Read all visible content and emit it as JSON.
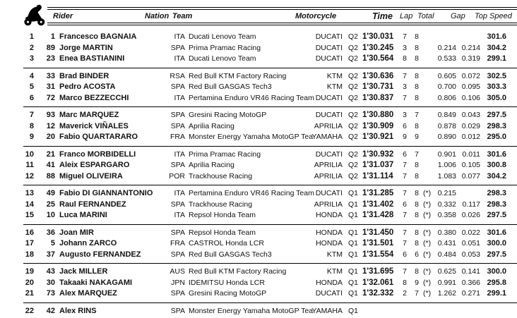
{
  "header": {
    "rider": "Rider",
    "nation": "Nation",
    "team": "Team",
    "motorcycle": "Motorcycle",
    "time": "Time",
    "lap": "Lap",
    "total": "Total",
    "gap": "Gap",
    "top_speed": "Top Speed"
  },
  "icons": {
    "header_icon": "motorcycle-rider"
  },
  "colors": {
    "text": "#111111",
    "rule": "#000000",
    "background": "#ffffff"
  },
  "groups": [
    {
      "rows": [
        {
          "pos": "1",
          "num": "1",
          "name": "Francesco BAGNAIA",
          "nation": "ITA",
          "team": "Ducati Lenovo Team",
          "bike": "DUCATI",
          "session": "Q2",
          "time": "1'30.031",
          "lap": "7",
          "total": "8",
          "star": "",
          "gap1": "",
          "gap2": "",
          "speed": "301.6"
        },
        {
          "pos": "2",
          "num": "89",
          "name": "Jorge MARTIN",
          "nation": "SPA",
          "team": "Prima Pramac Racing",
          "bike": "DUCATI",
          "session": "Q2",
          "time": "1'30.245",
          "lap": "3",
          "total": "8",
          "star": "",
          "gap1": "0.214",
          "gap2": "0.214",
          "speed": "304.2"
        },
        {
          "pos": "3",
          "num": "23",
          "name": "Enea BASTIANINI",
          "nation": "ITA",
          "team": "Ducati Lenovo Team",
          "bike": "DUCATI",
          "session": "Q2",
          "time": "1'30.564",
          "lap": "8",
          "total": "8",
          "star": "",
          "gap1": "0.533",
          "gap2": "0.319",
          "speed": "299.1"
        }
      ]
    },
    {
      "rows": [
        {
          "pos": "4",
          "num": "33",
          "name": "Brad BINDER",
          "nation": "RSA",
          "team": "Red Bull KTM Factory Racing",
          "bike": "KTM",
          "session": "Q2",
          "time": "1'30.636",
          "lap": "7",
          "total": "8",
          "star": "",
          "gap1": "0.605",
          "gap2": "0.072",
          "speed": "302.5"
        },
        {
          "pos": "5",
          "num": "31",
          "name": "Pedro ACOSTA",
          "nation": "SPA",
          "team": "Red Bull GASGAS Tech3",
          "bike": "KTM",
          "session": "Q2",
          "time": "1'30.731",
          "lap": "3",
          "total": "8",
          "star": "",
          "gap1": "0.700",
          "gap2": "0.095",
          "speed": "303.3"
        },
        {
          "pos": "6",
          "num": "72",
          "name": "Marco BEZZECCHI",
          "nation": "ITA",
          "team": "Pertamina Enduro VR46 Racing Team",
          "bike": "DUCATI",
          "session": "Q2",
          "time": "1'30.837",
          "lap": "7",
          "total": "8",
          "star": "",
          "gap1": "0.806",
          "gap2": "0.106",
          "speed": "305.0"
        }
      ]
    },
    {
      "rows": [
        {
          "pos": "7",
          "num": "93",
          "name": "Marc MARQUEZ",
          "nation": "SPA",
          "team": "Gresini Racing MotoGP",
          "bike": "DUCATI",
          "session": "Q2",
          "time": "1'30.880",
          "lap": "3",
          "total": "7",
          "star": "",
          "gap1": "0.849",
          "gap2": "0.043",
          "speed": "297.5"
        },
        {
          "pos": "8",
          "num": "12",
          "name": "Maverick VIÑALES",
          "nation": "SPA",
          "team": "Aprilia Racing",
          "bike": "APRILIA",
          "session": "Q2",
          "time": "1'30.909",
          "lap": "6",
          "total": "8",
          "star": "",
          "gap1": "0.878",
          "gap2": "0.029",
          "speed": "298.3"
        },
        {
          "pos": "9",
          "num": "20",
          "name": "Fabio QUARTARARO",
          "nation": "FRA",
          "team": "Monster Energy Yamaha MotoGP Tea",
          "bike": "YAMAHA",
          "session": "Q2",
          "time": "1'30.921",
          "lap": "9",
          "total": "9",
          "star": "",
          "gap1": "0.890",
          "gap2": "0.012",
          "speed": "295.0"
        }
      ]
    },
    {
      "rows": [
        {
          "pos": "10",
          "num": "21",
          "name": "Franco MORBIDELLI",
          "nation": "ITA",
          "team": "Prima Pramac Racing",
          "bike": "DUCATI",
          "session": "Q2",
          "time": "1'30.932",
          "lap": "6",
          "total": "7",
          "star": "",
          "gap1": "0.901",
          "gap2": "0.011",
          "speed": "301.6"
        },
        {
          "pos": "11",
          "num": "41",
          "name": "Aleix ESPARGARO",
          "nation": "SPA",
          "team": "Aprilia Racing",
          "bike": "APRILIA",
          "session": "Q2",
          "time": "1'31.037",
          "lap": "7",
          "total": "8",
          "star": "",
          "gap1": "1.006",
          "gap2": "0.105",
          "speed": "300.8"
        },
        {
          "pos": "12",
          "num": "88",
          "name": "Miguel OLIVEIRA",
          "nation": "POR",
          "team": "Trackhouse Racing",
          "bike": "APRILIA",
          "session": "Q2",
          "time": "1'31.114",
          "lap": "7",
          "total": "8",
          "star": "",
          "gap1": "1.083",
          "gap2": "0.077",
          "speed": "304.2"
        }
      ]
    },
    {
      "rows": [
        {
          "pos": "13",
          "num": "49",
          "name": "Fabio DI GIANNANTONIO",
          "nation": "ITA",
          "team": "Pertamina Enduro VR46 Racing Team",
          "bike": "DUCATI",
          "session": "Q1",
          "time": "1'31.285",
          "lap": "7",
          "total": "8",
          "star": "(*)",
          "gap1": "0.215",
          "gap2": "",
          "speed": "298.3"
        },
        {
          "pos": "14",
          "num": "25",
          "name": "Raul FERNANDEZ",
          "nation": "SPA",
          "team": "Trackhouse Racing",
          "bike": "APRILIA",
          "session": "Q1",
          "time": "1'31.402",
          "lap": "6",
          "total": "8",
          "star": "(*)",
          "gap1": "0.332",
          "gap2": "0.117",
          "speed": "298.3"
        },
        {
          "pos": "15",
          "num": "10",
          "name": "Luca MARINI",
          "nation": "ITA",
          "team": "Repsol Honda Team",
          "bike": "HONDA",
          "session": "Q1",
          "time": "1'31.428",
          "lap": "7",
          "total": "8",
          "star": "(*)",
          "gap1": "0.358",
          "gap2": "0.026",
          "speed": "297.5"
        }
      ]
    },
    {
      "rows": [
        {
          "pos": "16",
          "num": "36",
          "name": "Joan MIR",
          "nation": "SPA",
          "team": "Repsol Honda Team",
          "bike": "HONDA",
          "session": "Q1",
          "time": "1'31.450",
          "lap": "7",
          "total": "8",
          "star": "(*)",
          "gap1": "0.380",
          "gap2": "0.022",
          "speed": "301.6"
        },
        {
          "pos": "17",
          "num": "5",
          "name": "Johann ZARCO",
          "nation": "FRA",
          "team": "CASTROL Honda LCR",
          "bike": "HONDA",
          "session": "Q1",
          "time": "1'31.501",
          "lap": "7",
          "total": "8",
          "star": "(*)",
          "gap1": "0.431",
          "gap2": "0.051",
          "speed": "300.0"
        },
        {
          "pos": "18",
          "num": "37",
          "name": "Augusto FERNANDEZ",
          "nation": "SPA",
          "team": "Red Bull GASGAS Tech3",
          "bike": "KTM",
          "session": "Q1",
          "time": "1'31.554",
          "lap": "6",
          "total": "6",
          "star": "(*)",
          "gap1": "0.484",
          "gap2": "0.053",
          "speed": "297.5"
        }
      ]
    },
    {
      "rows": [
        {
          "pos": "19",
          "num": "43",
          "name": "Jack MILLER",
          "nation": "AUS",
          "team": "Red Bull KTM Factory Racing",
          "bike": "KTM",
          "session": "Q1",
          "time": "1'31.695",
          "lap": "7",
          "total": "8",
          "star": "(*)",
          "gap1": "0.625",
          "gap2": "0.141",
          "speed": "300.0"
        },
        {
          "pos": "20",
          "num": "30",
          "name": "Takaaki NAKAGAMI",
          "nation": "JPN",
          "team": "IDEMITSU Honda LCR",
          "bike": "HONDA",
          "session": "Q1",
          "time": "1'32.061",
          "lap": "8",
          "total": "9",
          "star": "(*)",
          "gap1": "0.991",
          "gap2": "0.366",
          "speed": "295.8"
        },
        {
          "pos": "21",
          "num": "73",
          "name": "Alex MARQUEZ",
          "nation": "SPA",
          "team": "Gresini Racing MotoGP",
          "bike": "DUCATI",
          "session": "Q1",
          "time": "1'32.332",
          "lap": "2",
          "total": "7",
          "star": "(*)",
          "gap1": "1.262",
          "gap2": "0.271",
          "speed": "299.1"
        }
      ]
    },
    {
      "rows": [
        {
          "pos": "22",
          "num": "42",
          "name": "Alex RINS",
          "nation": "SPA",
          "team": "Monster Energy Yamaha MotoGP Tea",
          "bike": "YAMAHA",
          "session": "Q1",
          "time": "",
          "lap": "",
          "total": "",
          "star": "",
          "gap1": "",
          "gap2": "",
          "speed": ""
        }
      ]
    }
  ]
}
